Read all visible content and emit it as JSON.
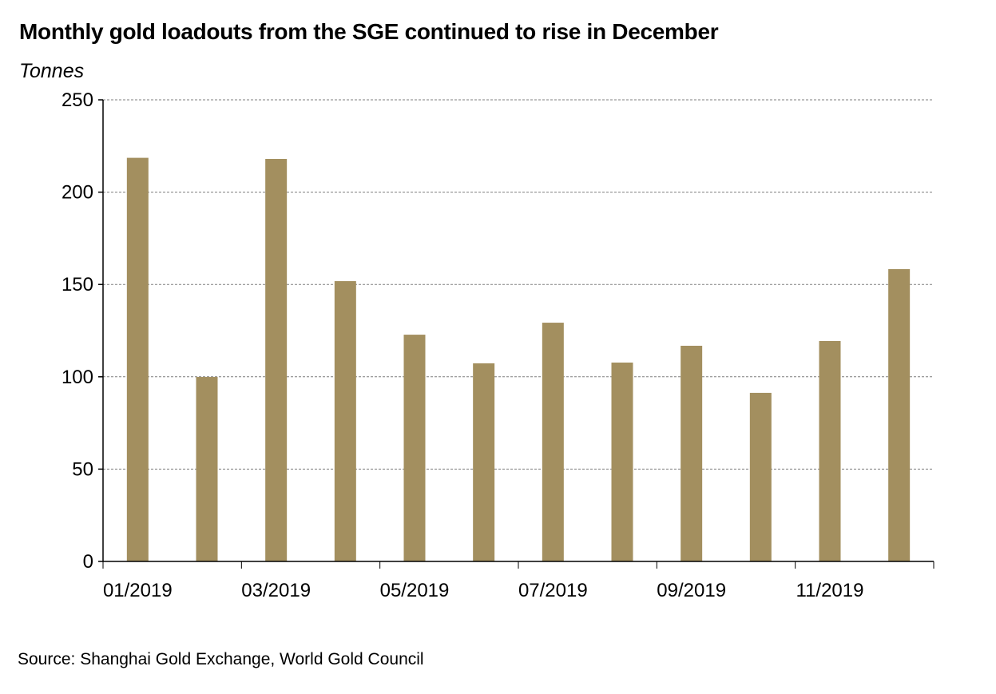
{
  "chart_data": {
    "type": "bar",
    "title": "Monthly gold loadouts from the SGE continued to rise in December",
    "ylabel": "Tonnes",
    "xlabel": "",
    "categories": [
      "01/2019",
      "02/2019",
      "03/2019",
      "04/2019",
      "05/2019",
      "06/2019",
      "07/2019",
      "08/2019",
      "09/2019",
      "10/2019",
      "11/2019",
      "12/2019"
    ],
    "x_tick_labels": [
      "01/2019",
      "",
      "03/2019",
      "",
      "05/2019",
      "",
      "07/2019",
      "",
      "09/2019",
      "",
      "11/2019",
      ""
    ],
    "values": [
      218.6,
      99.9,
      218.0,
      151.8,
      122.8,
      107.3,
      129.3,
      107.7,
      116.8,
      91.3,
      119.4,
      158.3
    ],
    "ylim": [
      0,
      250
    ],
    "y_ticks": [
      0,
      50,
      100,
      150,
      200,
      250
    ],
    "grid": "horizontal-dashed",
    "legend": "none",
    "bar_color": "#a38f5f",
    "source": "Source: Shanghai Gold Exchange, World Gold Council"
  }
}
